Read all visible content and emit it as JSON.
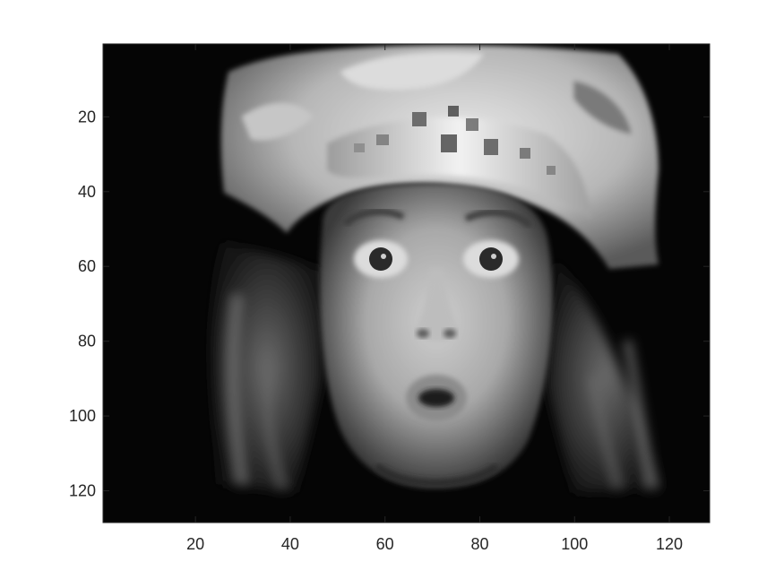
{
  "chart_data": {
    "type": "heatmap",
    "title": "",
    "xlabel": "",
    "ylabel": "",
    "colormap": "gray",
    "xlim": [
      0.5,
      128.5
    ],
    "ylim": [
      0.5,
      128.5
    ],
    "y_direction": "reverse",
    "x_ticks": [
      20,
      40,
      60,
      80,
      100,
      120
    ],
    "y_ticks": [
      20,
      40,
      60,
      80,
      100,
      120
    ],
    "x_tick_labels": [
      "20",
      "40",
      "60",
      "80",
      "100",
      "120"
    ],
    "y_tick_labels": [
      "20",
      "40",
      "60",
      "80",
      "100",
      "120"
    ],
    "grid": false,
    "legend": "none"
  }
}
